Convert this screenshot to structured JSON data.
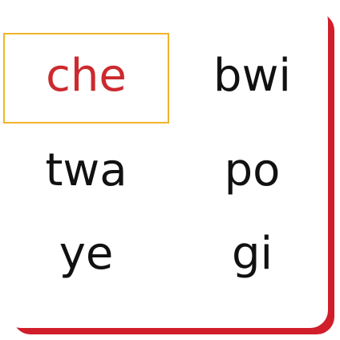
{
  "colors": {
    "accent_text": "#cc2a2e",
    "selection_border": "#f0b429",
    "card_shadow": "#d01f2a"
  },
  "syllables": [
    {
      "text": "che",
      "selected": true
    },
    {
      "text": "bwi",
      "selected": false
    },
    {
      "text": "twa",
      "selected": false
    },
    {
      "text": "po",
      "selected": false
    },
    {
      "text": "ye",
      "selected": false
    },
    {
      "text": "gi",
      "selected": false
    }
  ]
}
